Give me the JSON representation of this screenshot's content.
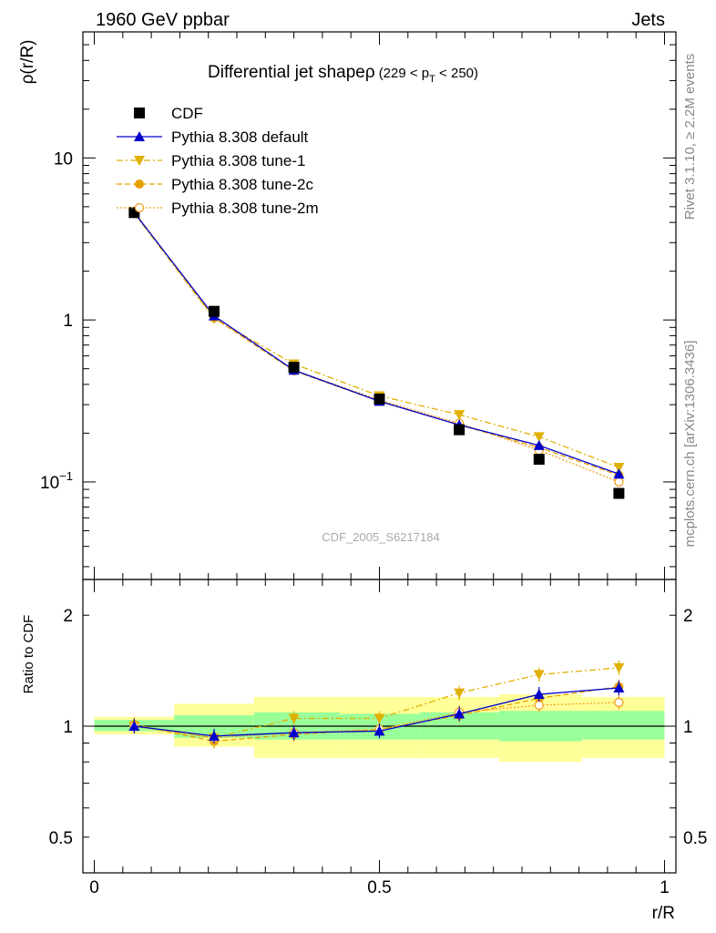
{
  "header": {
    "left": "1960 GeV ppbar",
    "right": "Jets"
  },
  "side_labels": {
    "top": "Rivet 3.1.10, ≥ 2.2M events",
    "bottom": "mcplots.cern.ch [arXiv:1306.3436]"
  },
  "colors": {
    "cdf": "#000000",
    "default": "#0000cc",
    "tune1": "#e0b000",
    "tune2c": "#e8a000",
    "tune2m": "#f0a020",
    "band_inner": "#99ff99",
    "band_outer": "#ffff99"
  },
  "chart_data": [
    {
      "type": "line",
      "title": "Differential jet shapeρ",
      "title_suffix": "(229 < p",
      "title_sub": "T",
      "title_end": " < 250)",
      "xlabel": "",
      "ylabel": "ρ(r/R)",
      "yscale": "log",
      "ylim": [
        0.025,
        60
      ],
      "xlim": [
        -0.02,
        1.02
      ],
      "y_tick_labels": [
        {
          "value": 10,
          "label": "10"
        },
        {
          "value": 1,
          "label": "1"
        },
        {
          "value": 0.1,
          "label": "10",
          "sup": "−1"
        }
      ],
      "watermark": "CDF_2005_S6217184",
      "legend_position": "top-left",
      "x": [
        0.07,
        0.21,
        0.35,
        0.5,
        0.64,
        0.78,
        0.92
      ],
      "series": [
        {
          "name": "CDF",
          "marker": "square",
          "values": [
            4.6,
            1.13,
            0.51,
            0.325,
            0.21,
            0.138,
            0.085
          ]
        },
        {
          "name": "Pythia 8.308 default",
          "marker": "triangle-up",
          "line": "solid",
          "values": [
            4.6,
            1.06,
            0.49,
            0.315,
            0.225,
            0.168,
            0.112
          ]
        },
        {
          "name": "Pythia 8.308 tune-1",
          "marker": "triangle-down",
          "line": "dashdot",
          "values": [
            4.55,
            1.02,
            0.535,
            0.34,
            0.26,
            0.19,
            0.123
          ]
        },
        {
          "name": "Pythia 8.308 tune-2c",
          "marker": "circle",
          "line": "dashed",
          "values": [
            4.65,
            1.03,
            0.485,
            0.315,
            0.225,
            0.163,
            0.11
          ]
        },
        {
          "name": "Pythia 8.308 tune-2m",
          "marker": "circle-open",
          "line": "dotted",
          "values": [
            4.6,
            1.05,
            0.49,
            0.32,
            0.23,
            0.157,
            0.1
          ]
        }
      ]
    },
    {
      "type": "line",
      "ylabel": "Ratio to CDF",
      "xlabel": "r/R",
      "yscale": "log",
      "ylim": [
        0.4,
        2.5
      ],
      "xlim": [
        -0.02,
        1.02
      ],
      "y_tick_labels": [
        {
          "value": 2,
          "label": "2"
        },
        {
          "value": 1,
          "label": "1"
        },
        {
          "value": 0.5,
          "label": "0.5"
        }
      ],
      "x_tick_labels": [
        {
          "value": 0,
          "label": "0"
        },
        {
          "value": 0.5,
          "label": "0.5"
        },
        {
          "value": 1,
          "label": "1"
        }
      ],
      "x": [
        0.07,
        0.21,
        0.35,
        0.5,
        0.64,
        0.78,
        0.92
      ],
      "bands": {
        "bin_edges": [
          0,
          0.14,
          0.28,
          0.43,
          0.57,
          0.71,
          0.855,
          1.0
        ],
        "inner_low": [
          0.97,
          0.93,
          0.92,
          0.92,
          0.92,
          0.91,
          0.92
        ],
        "inner_high": [
          1.04,
          1.07,
          1.09,
          1.08,
          1.09,
          1.1,
          1.1
        ],
        "outer_low": [
          0.95,
          0.88,
          0.82,
          0.82,
          0.82,
          0.8,
          0.82
        ],
        "outer_high": [
          1.06,
          1.15,
          1.2,
          1.2,
          1.2,
          1.22,
          1.2
        ]
      },
      "series": [
        {
          "name": "Pythia 8.308 default",
          "marker": "triangle-up",
          "line": "solid",
          "values": [
            1.0,
            0.94,
            0.96,
            0.97,
            1.08,
            1.22,
            1.27
          ]
        },
        {
          "name": "Pythia 8.308 tune-1",
          "marker": "triangle-down",
          "line": "dashdot",
          "values": [
            1.0,
            0.93,
            1.05,
            1.05,
            1.23,
            1.38,
            1.44
          ]
        },
        {
          "name": "Pythia 8.308 tune-2c",
          "marker": "circle",
          "line": "dashed",
          "values": [
            1.01,
            0.91,
            0.95,
            0.98,
            1.07,
            1.19,
            1.28
          ]
        },
        {
          "name": "Pythia 8.308 tune-2m",
          "marker": "circle-open",
          "line": "dotted",
          "values": [
            1.0,
            0.93,
            0.96,
            0.98,
            1.09,
            1.14,
            1.16
          ]
        }
      ]
    }
  ]
}
